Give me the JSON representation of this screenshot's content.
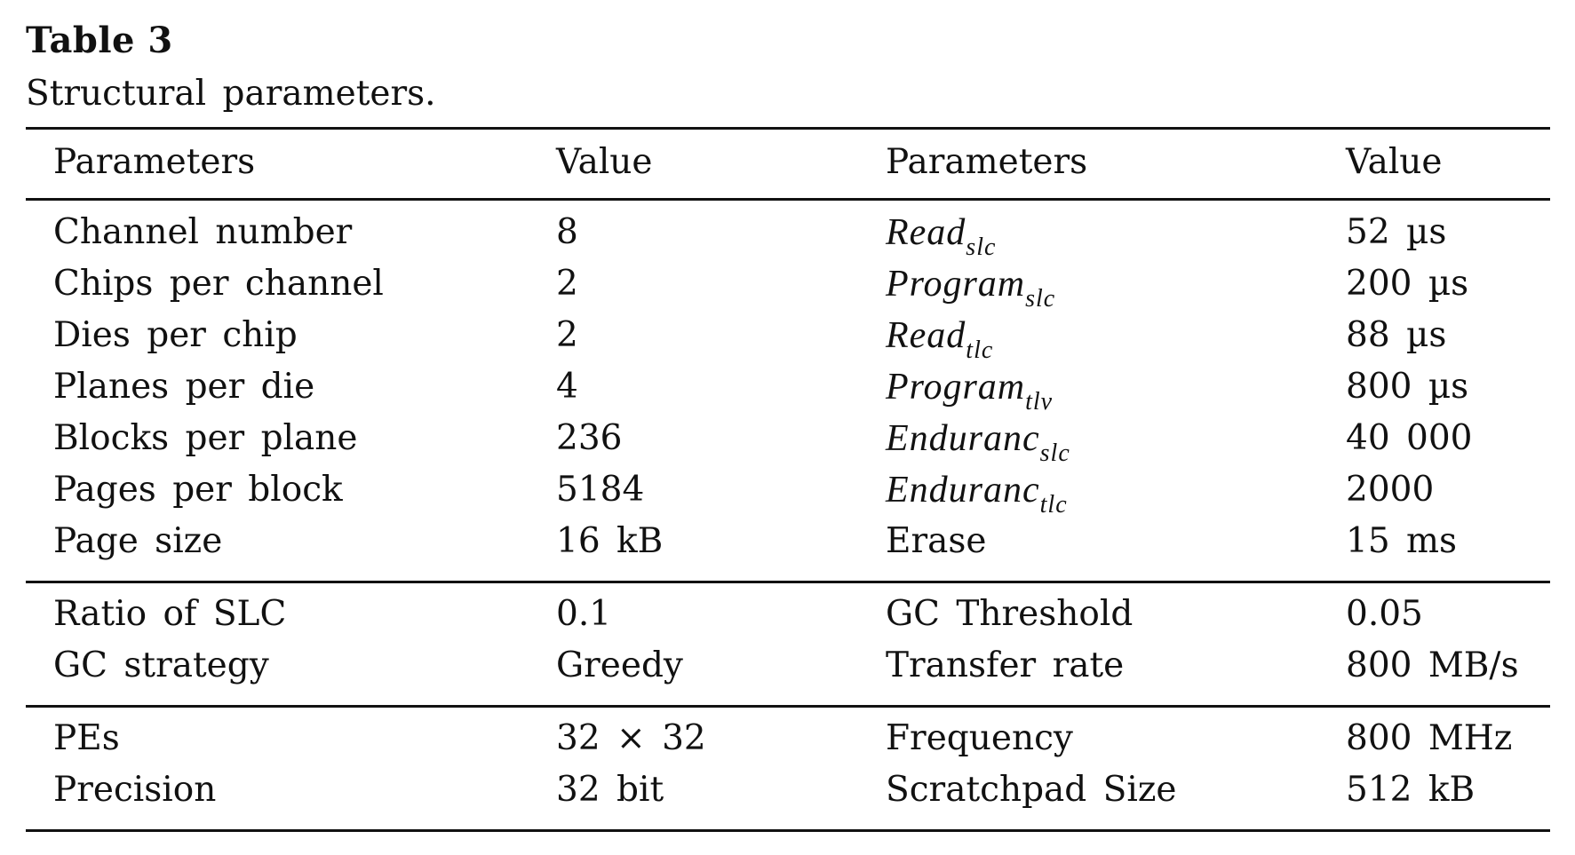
{
  "table": {
    "label": "Table 3",
    "caption": "Structural parameters.",
    "headers": [
      "Parameters",
      "Value",
      "Parameters",
      "Value"
    ],
    "groups": [
      {
        "rows": [
          {
            "p1": "Channel number",
            "v1": "8",
            "p2_base": "Read",
            "p2_sub": "slc",
            "v2": "52 µs"
          },
          {
            "p1": "Chips per channel",
            "v1": "2",
            "p2_base": "Program",
            "p2_sub": "slc",
            "v2": "200 µs"
          },
          {
            "p1": "Dies per chip",
            "v1": "2",
            "p2_base": "Read",
            "p2_sub": "tlc",
            "v2": "88 µs"
          },
          {
            "p1": "Planes per die",
            "v1": "4",
            "p2_base": "Program",
            "p2_sub": "tlv",
            "v2": "800 µs"
          },
          {
            "p1": "Blocks per plane",
            "v1": "236",
            "p2_base": "Enduranc",
            "p2_sub": "slc",
            "v2": "40 000"
          },
          {
            "p1": "Pages per block",
            "v1": "5184",
            "p2_base": "Enduranc",
            "p2_sub": "tlc",
            "v2": "2000"
          },
          {
            "p1": "Page size",
            "v1": "16 kB",
            "p2": "Erase",
            "v2": "15 ms"
          }
        ]
      },
      {
        "rows": [
          {
            "p1": "Ratio of SLC",
            "v1": "0.1",
            "p2": "GC Threshold",
            "v2": "0.05"
          },
          {
            "p1": "GC strategy",
            "v1": "Greedy",
            "p2": "Transfer rate",
            "v2": "800 MB/s"
          }
        ]
      },
      {
        "rows": [
          {
            "p1": "PEs",
            "v1": "32 × 32",
            "p2": "Frequency",
            "v2": "800 MHz"
          },
          {
            "p1": "Precision",
            "v1": "32 bit",
            "p2": "Scratchpad Size",
            "v2": "512 kB"
          }
        ]
      }
    ]
  }
}
